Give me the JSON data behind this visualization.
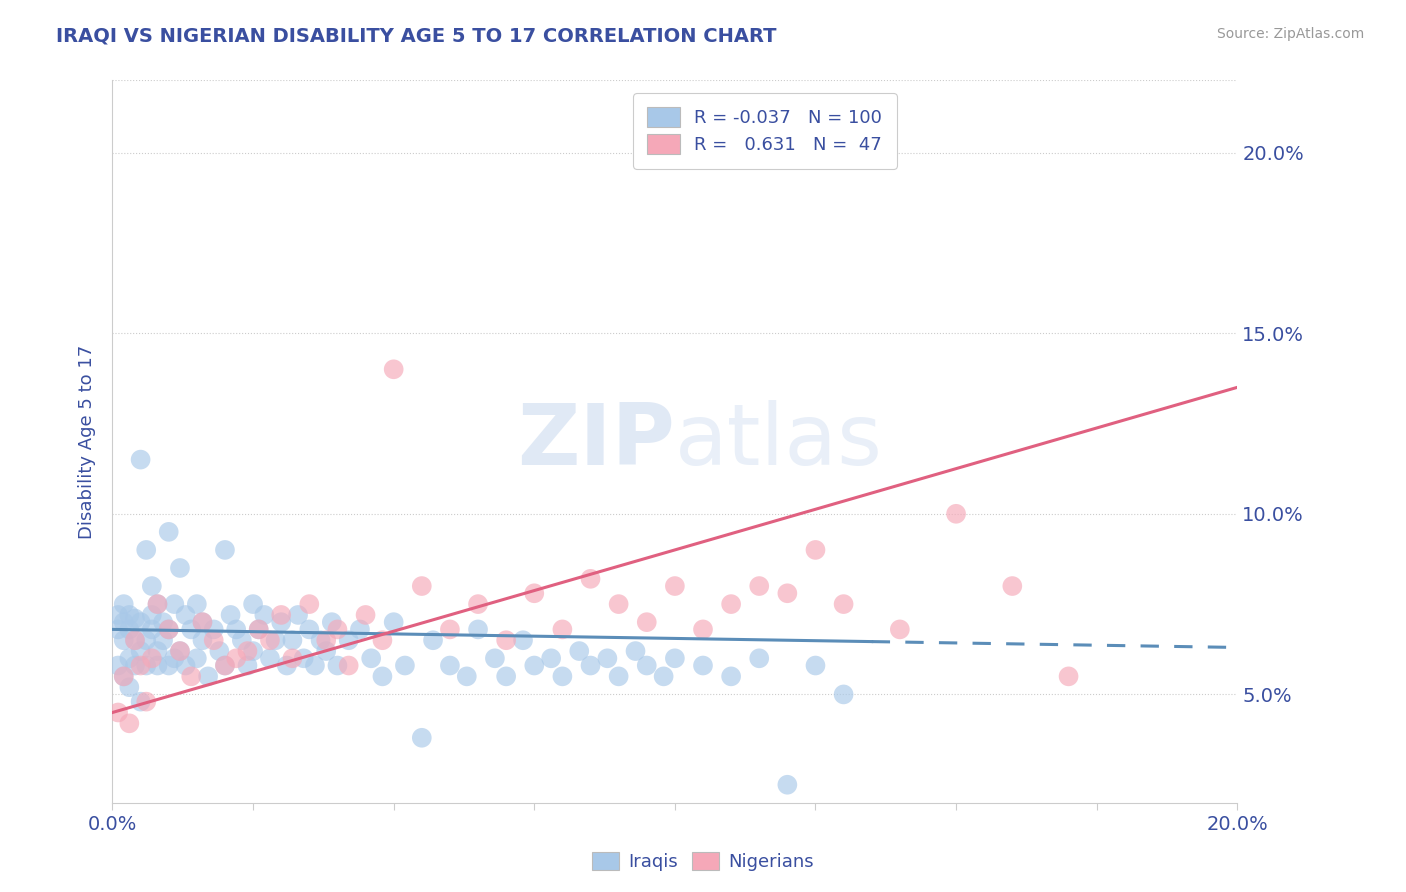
{
  "title": "IRAQI VS NIGERIAN DISABILITY AGE 5 TO 17 CORRELATION CHART",
  "source_text": "Source: ZipAtlas.com",
  "ylabel": "Disability Age 5 to 17",
  "xlim": [
    0.0,
    0.2
  ],
  "ylim": [
    0.02,
    0.22
  ],
  "yticks": [
    0.05,
    0.1,
    0.15,
    0.2
  ],
  "ytick_labels": [
    "5.0%",
    "10.0%",
    "15.0%",
    "20.0%"
  ],
  "xtick_positions": [
    0.0,
    0.025,
    0.05,
    0.075,
    0.1,
    0.125,
    0.15,
    0.175,
    0.2
  ],
  "title_color": "#3a4fa0",
  "axis_color": "#3a4fa0",
  "watermark": "ZIPAtlas",
  "iraqi_color": "#a8c8e8",
  "nigerian_color": "#f5a8b8",
  "iraqi_line_color": "#5b8db8",
  "nigerian_line_color": "#e06080",
  "R_iraqi": -0.037,
  "N_iraqi": 100,
  "R_nigerian": 0.631,
  "N_nigerian": 47,
  "legend_label_iraqi": "Iraqis",
  "legend_label_nigerian": "Nigerians",
  "iraqi_line_y0": 0.068,
  "iraqi_line_y1": 0.063,
  "nigerian_line_y0": 0.045,
  "nigerian_line_y1": 0.135,
  "iraqi_x": [
    0.001,
    0.001,
    0.001,
    0.002,
    0.002,
    0.002,
    0.002,
    0.003,
    0.003,
    0.003,
    0.003,
    0.004,
    0.004,
    0.004,
    0.005,
    0.005,
    0.005,
    0.005,
    0.006,
    0.006,
    0.006,
    0.007,
    0.007,
    0.007,
    0.008,
    0.008,
    0.008,
    0.009,
    0.009,
    0.01,
    0.01,
    0.01,
    0.011,
    0.011,
    0.012,
    0.012,
    0.013,
    0.013,
    0.014,
    0.015,
    0.015,
    0.016,
    0.016,
    0.017,
    0.018,
    0.019,
    0.02,
    0.02,
    0.021,
    0.022,
    0.023,
    0.024,
    0.025,
    0.025,
    0.026,
    0.027,
    0.028,
    0.029,
    0.03,
    0.031,
    0.032,
    0.033,
    0.034,
    0.035,
    0.036,
    0.037,
    0.038,
    0.039,
    0.04,
    0.042,
    0.044,
    0.046,
    0.048,
    0.05,
    0.052,
    0.055,
    0.057,
    0.06,
    0.063,
    0.065,
    0.068,
    0.07,
    0.073,
    0.075,
    0.078,
    0.08,
    0.083,
    0.085,
    0.088,
    0.09,
    0.093,
    0.095,
    0.098,
    0.1,
    0.105,
    0.11,
    0.115,
    0.12,
    0.125,
    0.13
  ],
  "iraqi_y": [
    0.068,
    0.072,
    0.058,
    0.07,
    0.065,
    0.075,
    0.055,
    0.068,
    0.072,
    0.06,
    0.052,
    0.065,
    0.071,
    0.058,
    0.115,
    0.062,
    0.07,
    0.048,
    0.09,
    0.065,
    0.058,
    0.08,
    0.068,
    0.072,
    0.075,
    0.062,
    0.058,
    0.07,
    0.065,
    0.095,
    0.068,
    0.058,
    0.075,
    0.06,
    0.085,
    0.062,
    0.072,
    0.058,
    0.068,
    0.075,
    0.06,
    0.07,
    0.065,
    0.055,
    0.068,
    0.062,
    0.09,
    0.058,
    0.072,
    0.068,
    0.065,
    0.058,
    0.075,
    0.062,
    0.068,
    0.072,
    0.06,
    0.065,
    0.07,
    0.058,
    0.065,
    0.072,
    0.06,
    0.068,
    0.058,
    0.065,
    0.062,
    0.07,
    0.058,
    0.065,
    0.068,
    0.06,
    0.055,
    0.07,
    0.058,
    0.038,
    0.065,
    0.058,
    0.055,
    0.068,
    0.06,
    0.055,
    0.065,
    0.058,
    0.06,
    0.055,
    0.062,
    0.058,
    0.06,
    0.055,
    0.062,
    0.058,
    0.055,
    0.06,
    0.058,
    0.055,
    0.06,
    0.025,
    0.058,
    0.05
  ],
  "nigerian_x": [
    0.001,
    0.002,
    0.003,
    0.004,
    0.005,
    0.006,
    0.007,
    0.008,
    0.01,
    0.012,
    0.014,
    0.016,
    0.018,
    0.02,
    0.022,
    0.024,
    0.026,
    0.028,
    0.03,
    0.032,
    0.035,
    0.038,
    0.04,
    0.042,
    0.045,
    0.048,
    0.05,
    0.055,
    0.06,
    0.065,
    0.07,
    0.075,
    0.08,
    0.085,
    0.09,
    0.095,
    0.1,
    0.105,
    0.11,
    0.115,
    0.12,
    0.125,
    0.13,
    0.14,
    0.15,
    0.16,
    0.17
  ],
  "nigerian_y": [
    0.045,
    0.055,
    0.042,
    0.065,
    0.058,
    0.048,
    0.06,
    0.075,
    0.068,
    0.062,
    0.055,
    0.07,
    0.065,
    0.058,
    0.06,
    0.062,
    0.068,
    0.065,
    0.072,
    0.06,
    0.075,
    0.065,
    0.068,
    0.058,
    0.072,
    0.065,
    0.14,
    0.08,
    0.068,
    0.075,
    0.065,
    0.078,
    0.068,
    0.082,
    0.075,
    0.07,
    0.08,
    0.068,
    0.075,
    0.08,
    0.078,
    0.09,
    0.075,
    0.068,
    0.1,
    0.08,
    0.055
  ]
}
